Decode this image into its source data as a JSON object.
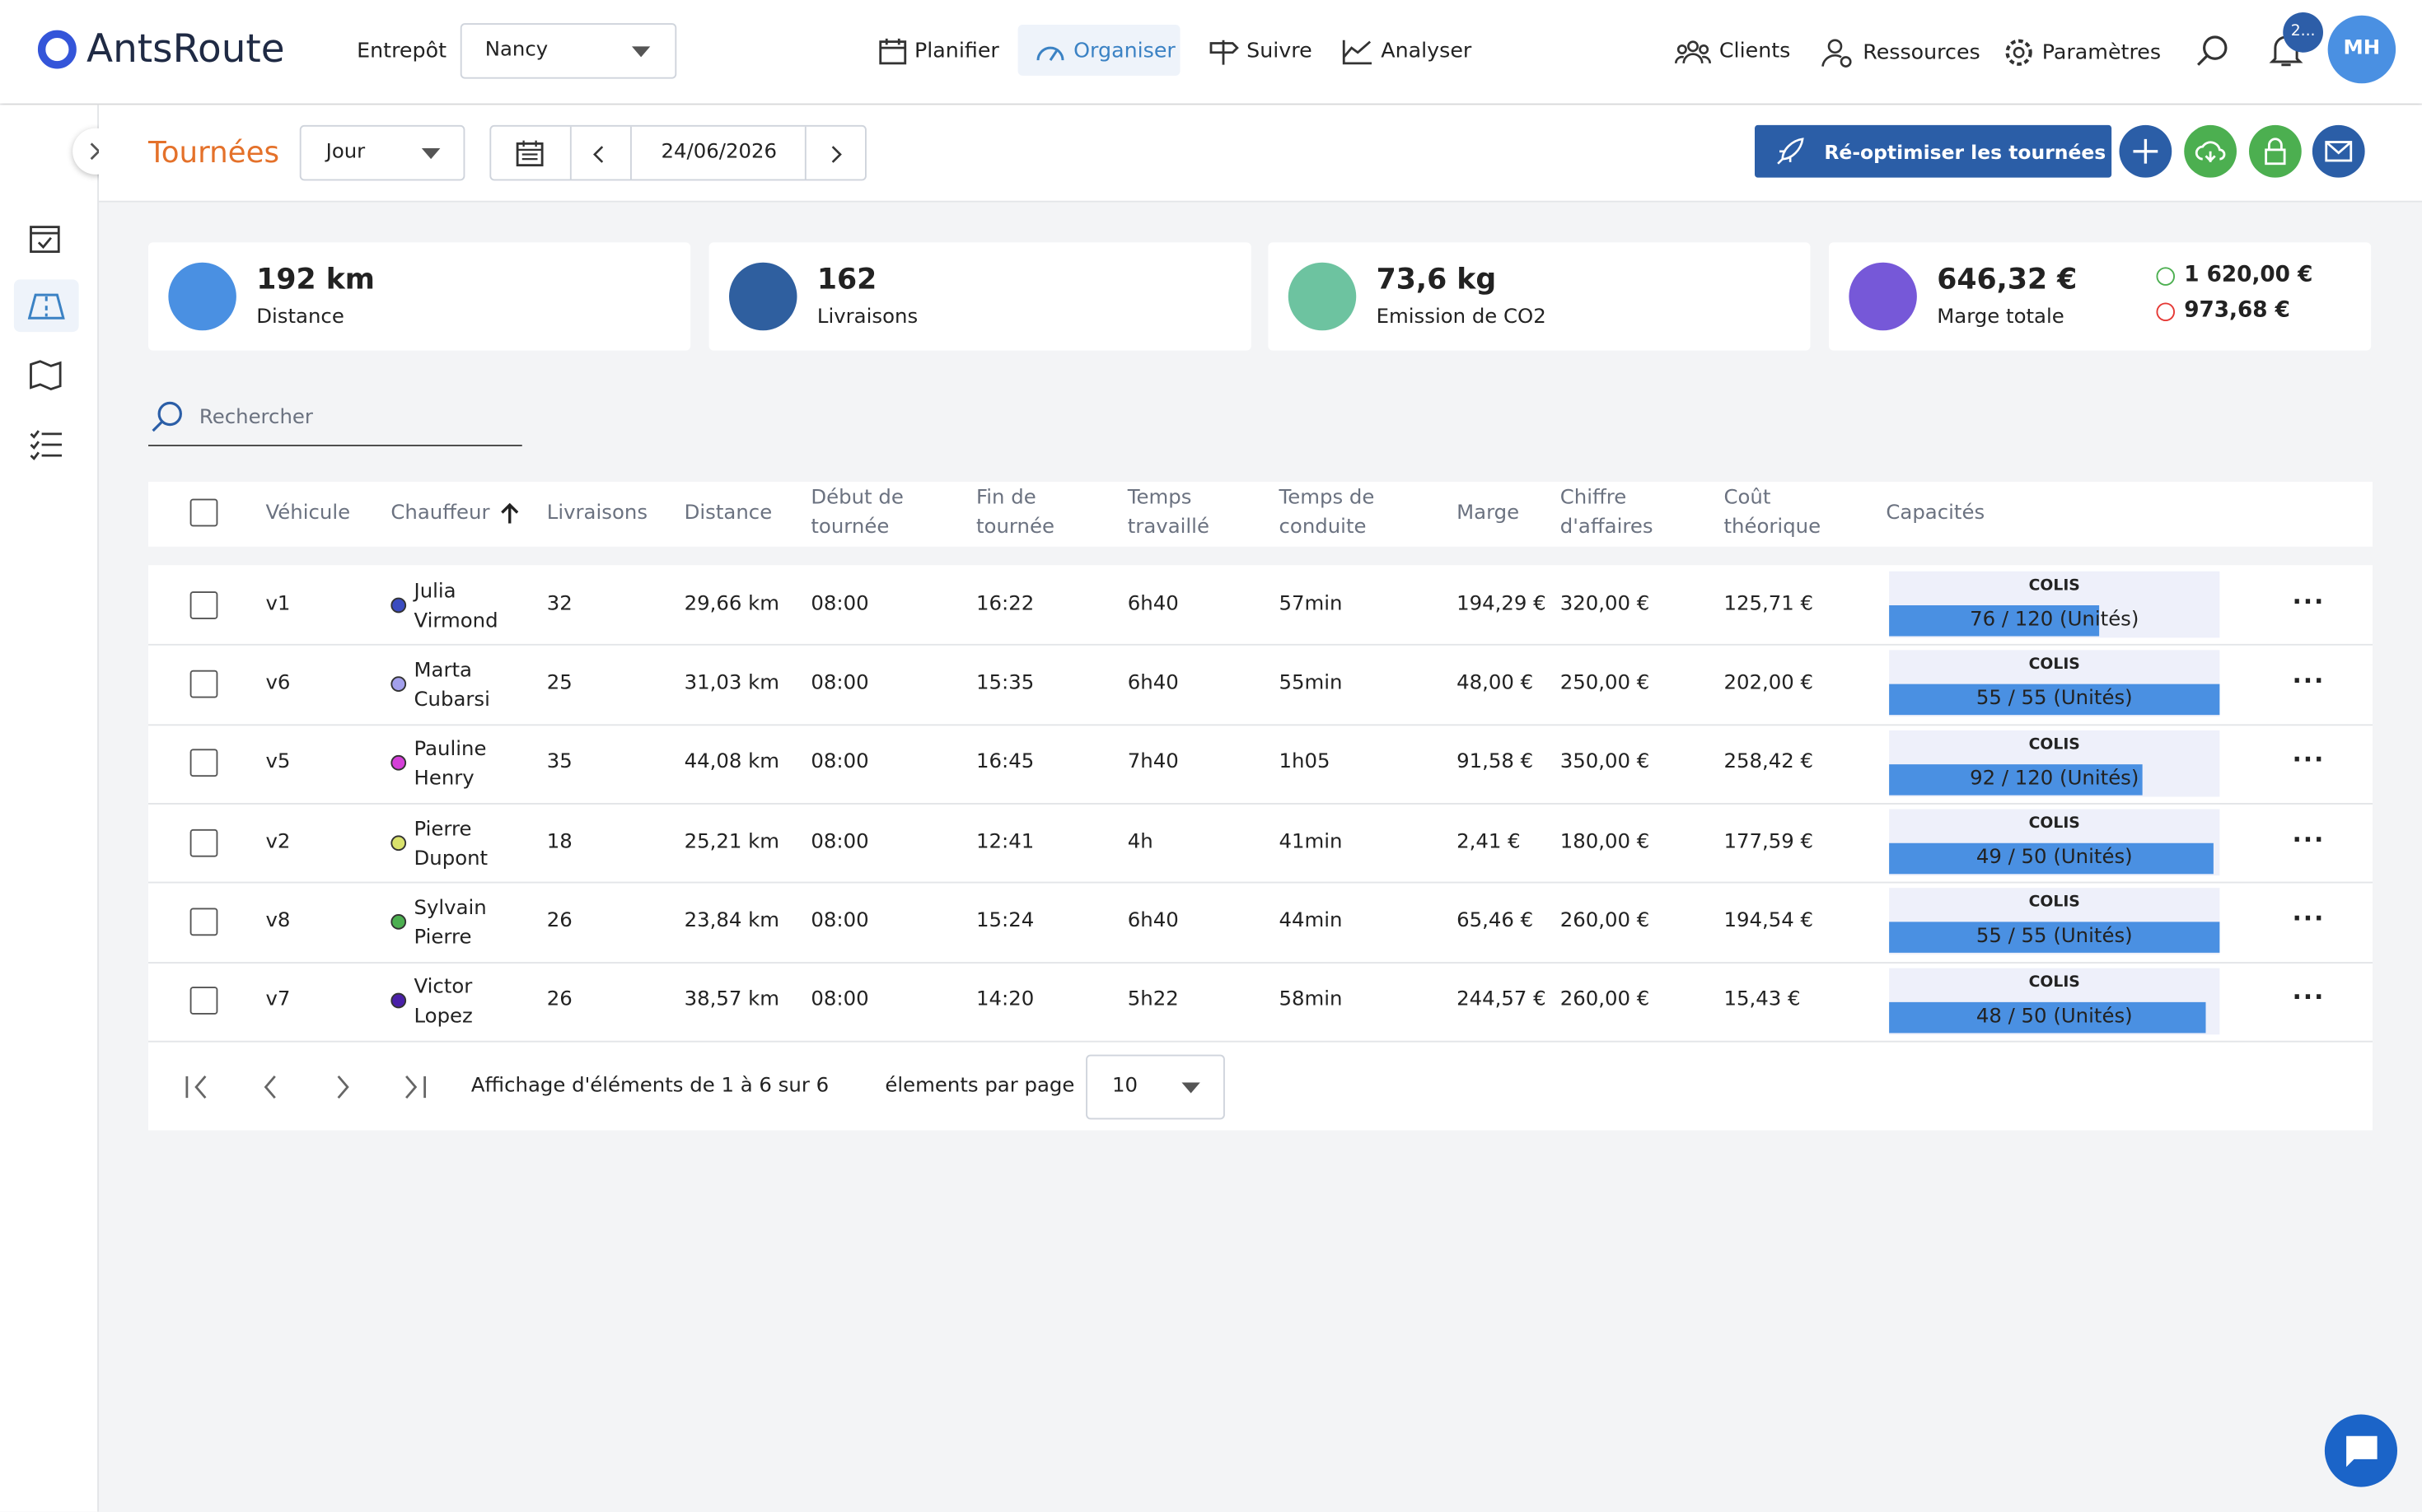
{
  "header": {
    "logo": "AntsRoute",
    "warehouse_label": "Entrepôt",
    "warehouse": "Nancy",
    "nav": [
      "Planifier",
      "Organiser",
      "Suivre",
      "Analyser"
    ],
    "right_nav": [
      "Clients",
      "Ressources",
      "Paramètres"
    ],
    "notifications": "2...",
    "avatar": "MH"
  },
  "toolbar": {
    "title": "Tournées",
    "period": "Jour",
    "date": "24/06/2026",
    "action": "Ré-optimiser les tournées"
  },
  "kpis": [
    {
      "value": "192 km",
      "label": "Distance",
      "color": "#4a90e2"
    },
    {
      "value": "162",
      "label": "Livraisons",
      "color": "#2f5f9f"
    },
    {
      "value": "73,6 kg",
      "label": "Emission de CO2",
      "color": "#6dc3a0"
    },
    {
      "value": "646,32 €",
      "label": "Marge totale",
      "color": "#7658d8",
      "up": "1 620,00 €",
      "down": "973,68 €"
    }
  ],
  "search": {
    "placeholder": "Rechercher"
  },
  "table": {
    "columns": [
      "Véhicule",
      "Chauffeur",
      "Livraisons",
      "Distance",
      "Début de tournée",
      "Fin de tournée",
      "Temps travaillé",
      "Temps de conduite",
      "Marge",
      "Chiffre d'affaires",
      "Coût théorique",
      "Capacités"
    ],
    "rows": [
      {
        "vehicle": "v1",
        "driver": "Julia Virmond",
        "color": "#3b4cc0",
        "deliveries": "32",
        "distance": "29,66 km",
        "start": "08:00",
        "end": "16:22",
        "worked": "6h40",
        "driving": "57min",
        "margin": "194,29 €",
        "revenue": "320,00 €",
        "cost": "125,71 €",
        "capacity": {
          "name": "COLIS",
          "value": 76,
          "max": 120,
          "label": "76 / 120 (Unités)"
        }
      },
      {
        "vehicle": "v6",
        "driver": "Marta Cubarsi",
        "color": "#a3a0ec",
        "deliveries": "25",
        "distance": "31,03 km",
        "start": "08:00",
        "end": "15:35",
        "worked": "6h40",
        "driving": "55min",
        "margin": "48,00 €",
        "revenue": "250,00 €",
        "cost": "202,00 €",
        "capacity": {
          "name": "COLIS",
          "value": 55,
          "max": 55,
          "label": "55 / 55 (Unités)"
        }
      },
      {
        "vehicle": "v5",
        "driver": "Pauline Henry",
        "color": "#d43fd8",
        "deliveries": "35",
        "distance": "44,08 km",
        "start": "08:00",
        "end": "16:45",
        "worked": "7h40",
        "driving": "1h05",
        "margin": "91,58 €",
        "revenue": "350,00 €",
        "cost": "258,42 €",
        "capacity": {
          "name": "COLIS",
          "value": 92,
          "max": 120,
          "label": "92 / 120 (Unités)"
        }
      },
      {
        "vehicle": "v2",
        "driver": "Pierre Dupont",
        "color": "#d9e26c",
        "deliveries": "18",
        "distance": "25,21 km",
        "start": "08:00",
        "end": "12:41",
        "worked": "4h",
        "driving": "41min",
        "margin": "2,41 €",
        "revenue": "180,00 €",
        "cost": "177,59 €",
        "capacity": {
          "name": "COLIS",
          "value": 49,
          "max": 50,
          "label": "49 / 50 (Unités)"
        }
      },
      {
        "vehicle": "v8",
        "driver": "Sylvain Pierre",
        "color": "#4caf50",
        "deliveries": "26",
        "distance": "23,84 km",
        "start": "08:00",
        "end": "15:24",
        "worked": "6h40",
        "driving": "44min",
        "margin": "65,46 €",
        "revenue": "260,00 €",
        "cost": "194,54 €",
        "capacity": {
          "name": "COLIS",
          "value": 55,
          "max": 55,
          "label": "55 / 55 (Unités)"
        }
      },
      {
        "vehicle": "v7",
        "driver": "Victor Lopez",
        "color": "#4a20a8",
        "deliveries": "26",
        "distance": "38,57 km",
        "start": "08:00",
        "end": "14:20",
        "worked": "5h22",
        "driving": "58min",
        "margin": "244,57 €",
        "revenue": "260,00 €",
        "cost": "15,43 €",
        "capacity": {
          "name": "COLIS",
          "value": 48,
          "max": 50,
          "label": "48 / 50 (Unités)"
        }
      }
    ]
  },
  "pagination": {
    "summary": "Affichage d'éléments de 1 à 6 sur 6",
    "per_page_label": "élements par page",
    "per_page": "10"
  }
}
